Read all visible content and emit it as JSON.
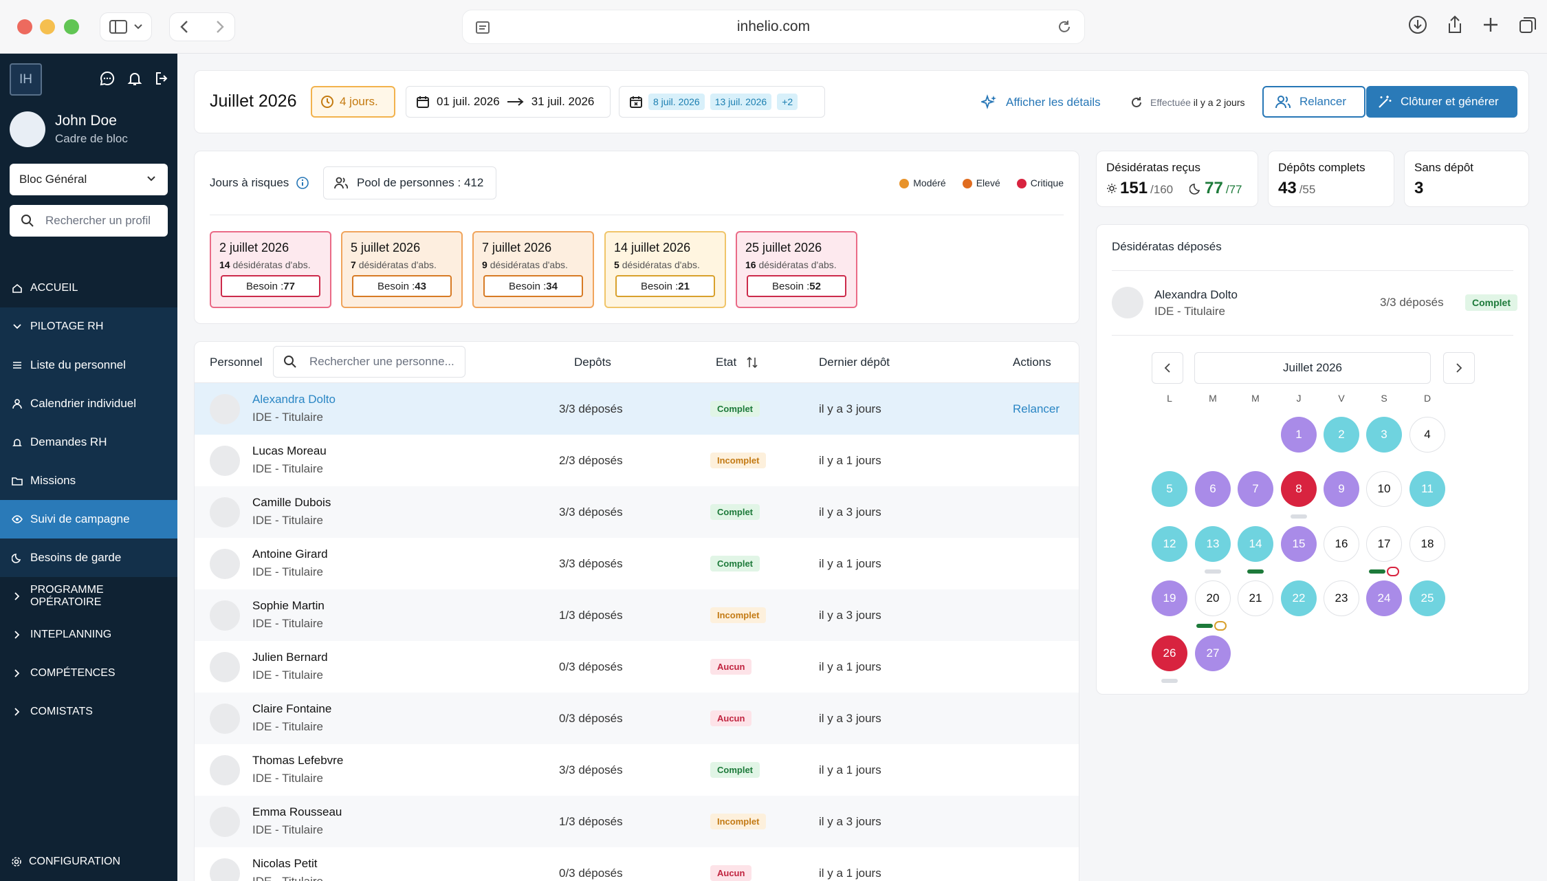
{
  "browser": {
    "url": "inhelio.com"
  },
  "sidebar": {
    "logo": "IH",
    "user_name": "John Doe",
    "user_role": "Cadre de bloc",
    "bloc_select": "Bloc Général",
    "search_placeholder": "Rechercher un profil",
    "items": [
      {
        "label": "ACCUEIL"
      },
      {
        "label": "PILOTAGE RH"
      },
      {
        "label": "Liste du personnel"
      },
      {
        "label": "Calendrier individuel"
      },
      {
        "label": "Demandes RH"
      },
      {
        "label": "Missions"
      },
      {
        "label": "Suivi de campagne"
      },
      {
        "label": "Besoins de garde"
      },
      {
        "label": "PROGRAMME OPÉRATOIRE"
      },
      {
        "label": "INTEPLANNING"
      },
      {
        "label": "COMPÉTENCES"
      },
      {
        "label": "COMISTATS"
      }
    ],
    "config": "CONFIGURATION"
  },
  "header": {
    "month": "Juillet 2026",
    "days_badge": "4 jours.",
    "date_from": "01 juil. 2026",
    "date_to": "31 juil. 2026",
    "chips": [
      "8 juil. 2026",
      "13 juil. 2026",
      "+2"
    ],
    "details_link": "Afficher les détails",
    "effectuee_label": "Effectuée",
    "effectuee_when": "il y a 2 jours",
    "relancer": "Relancer",
    "cloturer": "Clôturer et générer"
  },
  "risk": {
    "label": "Jours à risques",
    "pool": "Pool de personnes : 412",
    "legend": [
      {
        "label": "Modéré",
        "color": "#e8932a"
      },
      {
        "label": "Elevé",
        "color": "#e06c1f"
      },
      {
        "label": "Critique",
        "color": "#d8233f"
      }
    ],
    "cards": [
      {
        "date": "2 juillet 2026",
        "count": "14",
        "suffix": "désidératas d'abs.",
        "besoin_label": "Besoin : ",
        "besoin": "77",
        "level": "crit"
      },
      {
        "date": "5 juillet 2026",
        "count": "7",
        "suffix": "désidératas d'abs.",
        "besoin_label": "Besoin : ",
        "besoin": "43",
        "level": "eleve"
      },
      {
        "date": "7 juillet 2026",
        "count": "9",
        "suffix": "désidératas d'abs.",
        "besoin_label": "Besoin : ",
        "besoin": "34",
        "level": "eleve"
      },
      {
        "date": "14 juillet 2026",
        "count": "5",
        "suffix": "désidératas d'abs.",
        "besoin_label": "Besoin : ",
        "besoin": "21",
        "level": "mod"
      },
      {
        "date": "25 juillet 2026",
        "count": "16",
        "suffix": "désidératas d'abs.",
        "besoin_label": "Besoin : ",
        "besoin": "52",
        "level": "crit"
      }
    ]
  },
  "table": {
    "col_personnel": "Personnel",
    "search_placeholder": "Rechercher une personne...",
    "col_depots": "Depôts",
    "col_etat": "Etat",
    "col_dernier": "Dernier dépôt",
    "col_actions": "Actions",
    "rows": [
      {
        "name": "Alexandra Dolto",
        "role": "IDE - Titulaire",
        "depots": "3/3 déposés",
        "etat": "Complet",
        "last": "il y a 3 jours",
        "action": "Relancer"
      },
      {
        "name": "Lucas Moreau",
        "role": "IDE - Titulaire",
        "depots": "2/3 déposés",
        "etat": "Incomplet",
        "last": "il y a 1 jours",
        "action": ""
      },
      {
        "name": "Camille Dubois",
        "role": "IDE - Titulaire",
        "depots": "3/3 déposés",
        "etat": "Complet",
        "last": "il y a 3 jours",
        "action": ""
      },
      {
        "name": "Antoine Girard",
        "role": "IDE - Titulaire",
        "depots": "3/3 déposés",
        "etat": "Complet",
        "last": "il y a 1 jours",
        "action": ""
      },
      {
        "name": "Sophie Martin",
        "role": "IDE - Titulaire",
        "depots": "1/3 déposés",
        "etat": "Incomplet",
        "last": "il y a 3 jours",
        "action": ""
      },
      {
        "name": "Julien Bernard",
        "role": "IDE - Titulaire",
        "depots": "0/3 déposés",
        "etat": "Aucun",
        "last": "il y a 1 jours",
        "action": ""
      },
      {
        "name": "Claire Fontaine",
        "role": "IDE - Titulaire",
        "depots": "0/3 déposés",
        "etat": "Aucun",
        "last": "il y a 3 jours",
        "action": ""
      },
      {
        "name": "Thomas Lefebvre",
        "role": "IDE - Titulaire",
        "depots": "3/3 déposés",
        "etat": "Complet",
        "last": "il y a 1 jours",
        "action": ""
      },
      {
        "name": "Emma Rousseau",
        "role": "IDE - Titulaire",
        "depots": "1/3 déposés",
        "etat": "Incomplet",
        "last": "il y a 3 jours",
        "action": ""
      },
      {
        "name": "Nicolas Petit",
        "role": "IDE - Titulaire",
        "depots": "0/3 déposés",
        "etat": "Aucun",
        "last": "il y a 1 jours",
        "action": ""
      }
    ]
  },
  "stats": {
    "recus_label": "Désidératas reçus",
    "recus_a": "151",
    "recus_a_total": "/160",
    "recus_b": "77",
    "recus_b_total": "/77",
    "complets_label": "Dépôts complets",
    "complets": "43",
    "complets_total": "/55",
    "sans_label": "Sans dépôt",
    "sans": "3"
  },
  "desi": {
    "title": "Désidératas déposés",
    "name": "Alexandra Dolto",
    "role": "IDE - Titulaire",
    "count": "3/3 déposés",
    "badge": "Complet",
    "calendar_month": "Juillet 2026",
    "dow": [
      "L",
      "M",
      "M",
      "J",
      "V",
      "S",
      "D"
    ]
  }
}
